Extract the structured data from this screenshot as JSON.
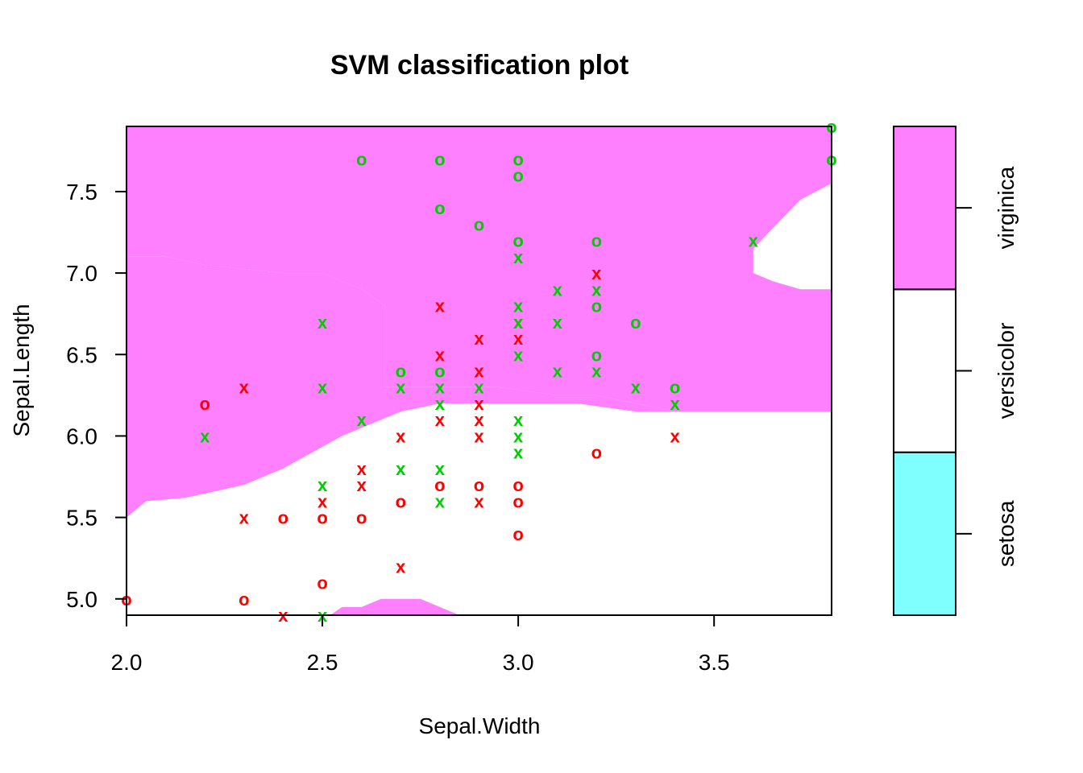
{
  "chart_data": {
    "type": "scatter",
    "title": "SVM classification plot",
    "xlabel": "Sepal.Width",
    "ylabel": "Sepal.Length",
    "xlim": [
      2.0,
      3.8
    ],
    "ylim": [
      4.9,
      7.9
    ],
    "x_ticks": [
      "2.0",
      "2.5",
      "3.0",
      "3.5"
    ],
    "x_tick_values": [
      2.0,
      2.5,
      3.0,
      3.5
    ],
    "y_ticks": [
      "5.0",
      "5.5",
      "6.0",
      "6.5",
      "7.0",
      "7.5"
    ],
    "y_tick_values": [
      5.0,
      5.5,
      6.0,
      6.5,
      7.0,
      7.5
    ],
    "legend": {
      "position": "right",
      "classes": [
        "setosa",
        "versicolor",
        "virginica"
      ],
      "colors": [
        "#80ffff",
        "#ffffff",
        "#ff80ff"
      ]
    },
    "colors": {
      "virginica_region": "#ff80ff",
      "versicolor_region": "#ffffff",
      "versicolor_points": "#ff0000",
      "virginica_points": "#00cd00"
    },
    "region_boundaries": {
      "virginica_upper": [
        [
          2.0,
          7.1
        ],
        [
          2.1,
          7.1
        ],
        [
          2.2,
          7.05
        ],
        [
          2.4,
          7.0
        ],
        [
          2.5,
          7.0
        ],
        [
          2.6,
          6.9
        ],
        [
          2.66,
          6.8
        ],
        [
          2.66,
          6.3
        ],
        [
          2.68,
          6.3
        ],
        [
          2.95,
          6.3
        ],
        [
          3.1,
          6.25
        ],
        [
          3.2,
          6.25
        ],
        [
          3.4,
          6.15
        ],
        [
          3.8,
          6.15
        ]
      ],
      "virginica_lower": [
        [
          2.0,
          5.5
        ],
        [
          2.05,
          5.6
        ],
        [
          2.15,
          5.62
        ],
        [
          2.3,
          5.7
        ],
        [
          2.4,
          5.8
        ],
        [
          2.55,
          6.0
        ],
        [
          2.65,
          6.1
        ],
        [
          2.7,
          6.15
        ],
        [
          2.8,
          6.2
        ],
        [
          2.95,
          6.2
        ],
        [
          3.1,
          6.2
        ],
        [
          3.15,
          6.2
        ],
        [
          3.3,
          6.15
        ],
        [
          3.8,
          6.15
        ]
      ],
      "white_right_island": [
        [
          3.8,
          7.55
        ],
        [
          3.72,
          7.45
        ],
        [
          3.68,
          7.35
        ],
        [
          3.64,
          7.25
        ],
        [
          3.6,
          7.15
        ],
        [
          3.6,
          7.0
        ],
        [
          3.65,
          6.95
        ],
        [
          3.72,
          6.9
        ],
        [
          3.8,
          6.9
        ]
      ],
      "virginica_bottom_bump": [
        [
          2.52,
          4.9
        ],
        [
          2.55,
          4.95
        ],
        [
          2.6,
          4.95
        ],
        [
          2.65,
          5.0
        ],
        [
          2.75,
          5.0
        ],
        [
          2.8,
          4.95
        ],
        [
          2.85,
          4.9
        ]
      ]
    },
    "series": [
      {
        "class": "versicolor",
        "color": "#ff0000",
        "points": [
          {
            "x": 2.0,
            "y": 5.0,
            "sv": false
          },
          {
            "x": 2.2,
            "y": 6.2,
            "sv": false
          },
          {
            "x": 2.3,
            "y": 6.3,
            "sv": true
          },
          {
            "x": 2.3,
            "y": 5.5,
            "sv": true
          },
          {
            "x": 2.3,
            "y": 5.0,
            "sv": false
          },
          {
            "x": 2.4,
            "y": 5.5,
            "sv": false
          },
          {
            "x": 2.4,
            "y": 4.9,
            "sv": true
          },
          {
            "x": 2.5,
            "y": 5.6,
            "sv": true
          },
          {
            "x": 2.5,
            "y": 5.5,
            "sv": false
          },
          {
            "x": 2.5,
            "y": 5.1,
            "sv": false
          },
          {
            "x": 2.6,
            "y": 5.8,
            "sv": true
          },
          {
            "x": 2.6,
            "y": 5.7,
            "sv": true
          },
          {
            "x": 2.6,
            "y": 5.5,
            "sv": false
          },
          {
            "x": 2.7,
            "y": 6.0,
            "sv": true
          },
          {
            "x": 2.7,
            "y": 5.6,
            "sv": false
          },
          {
            "x": 2.7,
            "y": 5.2,
            "sv": true
          },
          {
            "x": 2.8,
            "y": 6.8,
            "sv": true
          },
          {
            "x": 2.8,
            "y": 6.5,
            "sv": true
          },
          {
            "x": 2.8,
            "y": 6.1,
            "sv": true
          },
          {
            "x": 2.8,
            "y": 5.7,
            "sv": false
          },
          {
            "x": 2.9,
            "y": 6.6,
            "sv": true
          },
          {
            "x": 2.9,
            "y": 6.4,
            "sv": true
          },
          {
            "x": 2.9,
            "y": 6.2,
            "sv": true
          },
          {
            "x": 2.9,
            "y": 6.1,
            "sv": true
          },
          {
            "x": 2.9,
            "y": 6.0,
            "sv": true
          },
          {
            "x": 2.9,
            "y": 5.7,
            "sv": false
          },
          {
            "x": 2.9,
            "y": 5.6,
            "sv": true
          },
          {
            "x": 3.0,
            "y": 6.7,
            "sv": true
          },
          {
            "x": 3.0,
            "y": 6.6,
            "sv": true
          },
          {
            "x": 3.0,
            "y": 5.7,
            "sv": false
          },
          {
            "x": 3.0,
            "y": 5.6,
            "sv": false
          },
          {
            "x": 3.0,
            "y": 5.4,
            "sv": false
          },
          {
            "x": 3.2,
            "y": 7.0,
            "sv": true
          },
          {
            "x": 3.2,
            "y": 5.9,
            "sv": false
          },
          {
            "x": 3.4,
            "y": 6.0,
            "sv": true
          }
        ]
      },
      {
        "class": "virginica",
        "color": "#00cd00",
        "points": [
          {
            "x": 2.2,
            "y": 6.0,
            "sv": true
          },
          {
            "x": 2.5,
            "y": 6.7,
            "sv": true
          },
          {
            "x": 2.5,
            "y": 6.3,
            "sv": true
          },
          {
            "x": 2.5,
            "y": 5.7,
            "sv": true
          },
          {
            "x": 2.5,
            "y": 4.9,
            "sv": true
          },
          {
            "x": 2.6,
            "y": 7.7,
            "sv": false
          },
          {
            "x": 2.6,
            "y": 6.1,
            "sv": true
          },
          {
            "x": 2.7,
            "y": 6.4,
            "sv": false
          },
          {
            "x": 2.7,
            "y": 6.3,
            "sv": true
          },
          {
            "x": 2.7,
            "y": 5.8,
            "sv": true
          },
          {
            "x": 2.8,
            "y": 7.7,
            "sv": false
          },
          {
            "x": 2.8,
            "y": 7.4,
            "sv": false
          },
          {
            "x": 2.8,
            "y": 6.4,
            "sv": false
          },
          {
            "x": 2.8,
            "y": 6.3,
            "sv": true
          },
          {
            "x": 2.8,
            "y": 6.2,
            "sv": true
          },
          {
            "x": 2.8,
            "y": 5.8,
            "sv": true
          },
          {
            "x": 2.8,
            "y": 5.6,
            "sv": true
          },
          {
            "x": 2.9,
            "y": 7.3,
            "sv": false
          },
          {
            "x": 2.9,
            "y": 6.3,
            "sv": true
          },
          {
            "x": 3.0,
            "y": 7.7,
            "sv": false
          },
          {
            "x": 3.0,
            "y": 7.6,
            "sv": false
          },
          {
            "x": 3.0,
            "y": 7.2,
            "sv": false
          },
          {
            "x": 3.0,
            "y": 7.1,
            "sv": true
          },
          {
            "x": 3.0,
            "y": 6.8,
            "sv": true
          },
          {
            "x": 3.0,
            "y": 6.7,
            "sv": true
          },
          {
            "x": 3.0,
            "y": 6.5,
            "sv": true
          },
          {
            "x": 3.0,
            "y": 6.1,
            "sv": true
          },
          {
            "x": 3.0,
            "y": 6.0,
            "sv": true
          },
          {
            "x": 3.0,
            "y": 5.9,
            "sv": true
          },
          {
            "x": 3.1,
            "y": 6.9,
            "sv": true
          },
          {
            "x": 3.1,
            "y": 6.7,
            "sv": true
          },
          {
            "x": 3.1,
            "y": 6.4,
            "sv": true
          },
          {
            "x": 3.2,
            "y": 7.2,
            "sv": false
          },
          {
            "x": 3.2,
            "y": 6.9,
            "sv": true
          },
          {
            "x": 3.2,
            "y": 6.8,
            "sv": false
          },
          {
            "x": 3.2,
            "y": 6.5,
            "sv": false
          },
          {
            "x": 3.2,
            "y": 6.4,
            "sv": true
          },
          {
            "x": 3.3,
            "y": 6.7,
            "sv": false
          },
          {
            "x": 3.3,
            "y": 6.3,
            "sv": true
          },
          {
            "x": 3.4,
            "y": 6.3,
            "sv": false
          },
          {
            "x": 3.4,
            "y": 6.2,
            "sv": true
          },
          {
            "x": 3.6,
            "y": 7.2,
            "sv": true
          },
          {
            "x": 3.8,
            "y": 7.9,
            "sv": false
          },
          {
            "x": 3.8,
            "y": 7.7,
            "sv": false
          }
        ]
      }
    ]
  }
}
